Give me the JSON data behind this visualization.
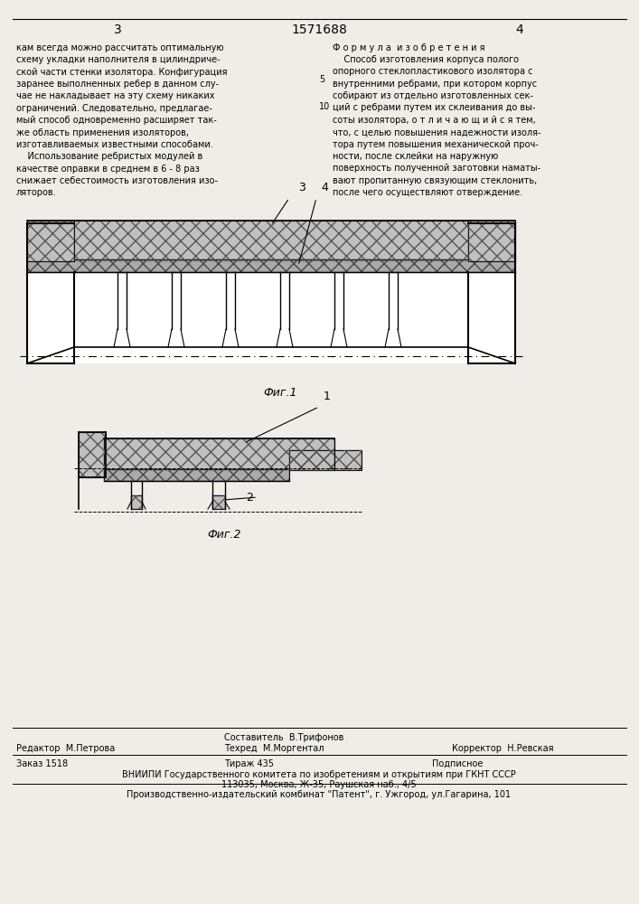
{
  "page_color": "#f0ede8",
  "header_nums": [
    "3",
    "1571688",
    "4"
  ],
  "left_col_text": "кам всегда можно рассчитать оптимальную\nсхему укладки наполнителя в цилиндриче-\nской части стенки изолятора. Конфигурация\nзаранее выполненных ребер в данном слу-\nчае не накладывает на эту схему никаких\nограничений. Следовательно, предлагае-\nмый способ одновременно расширяет так-\nже область применения изоляторов,\nизготавливаемых известными способами.\n    Использование ребристых модулей в\nкачестве оправки в среднем в 6 - 8 раз\nснижает себестоимость изготовления изо-\nляторов.",
  "right_col_header": "Ф о р м у л а  и з о б р е т е н и я",
  "right_col_text": "    Способ изготовления корпуса полого\nопорного стеклопластикового изолятора с\nвнутренними ребрами, при котором корпус\nсобирают из отдельно изготовленных сек-\nций с ребрами путем их склеивания до вы-\nсоты изолятора, о т л и ч а ю щ и й с я тем,\nчто, с целью повышения надежности изоля-\nтора путем повышения механической проч-\nности, после склейки на наружную\nповерхность полученной заготовки наматы-\nвают пропитанную связующим стеклонить,\nпосле чего осуществляют отверждение.",
  "line_number_5": "5",
  "line_number_10": "10",
  "fig1_caption": "Фиг.1",
  "fig2_caption": "Фиг.2",
  "footer_editor": "Редактор  М.Петрова",
  "footer_composer": "Составитель  В.Трифонов",
  "footer_corrector": "Корректор  Н.Ревская",
  "footer_techred": "Техред  М.Моргентал",
  "footer_order": "Заказ 1518",
  "footer_print": "Тираж 435",
  "footer_subtype": "Подписное",
  "footer_vniip": "ВНИИПИ Государственного комитета по изобретениям и открытиям при ГКНТ СССР",
  "footer_address": "113035, Москва, Ж-35, Раушская наб., 4/5",
  "footer_kombnat": "Производственно-издательский комбинат \"Патент\", г. Ужгород, ул.Гагарина, 101"
}
